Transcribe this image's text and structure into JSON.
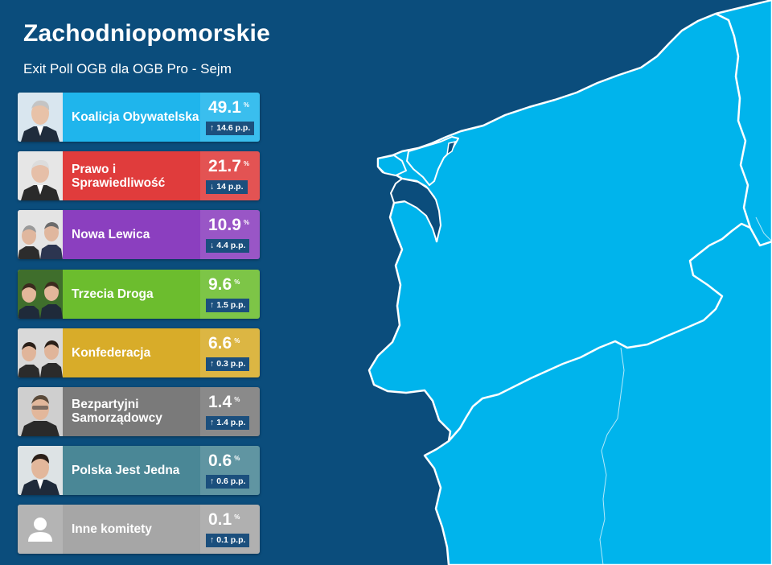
{
  "header": {
    "title": "Zachodniopomorskie",
    "subtitle": "Exit Poll OGB dla OGB Pro - Sejm"
  },
  "colors": {
    "background": "#0b4d7c",
    "map_fill": "#00b4ec",
    "border": "#ffffff"
  },
  "results": [
    {
      "id": "ko",
      "name": "Koalicja Obywatelska",
      "value": "49.1",
      "unit": "%",
      "change": "14.6 p.p.",
      "direction": "up",
      "color": "#1fb5ec"
    },
    {
      "id": "pis",
      "name": "Prawo i Sprawiedliwość",
      "value": "21.7",
      "unit": "%",
      "change": "14 p.p.",
      "direction": "down",
      "color": "#e03c3c"
    },
    {
      "id": "lewica",
      "name": "Nowa Lewica",
      "value": "10.9",
      "unit": "%",
      "change": "4.4 p.p.",
      "direction": "down",
      "color": "#8b3fbf"
    },
    {
      "id": "td",
      "name": "Trzecia Droga",
      "value": "9.6",
      "unit": "%",
      "change": "1.5 p.p.",
      "direction": "up",
      "color": "#6cbd2e"
    },
    {
      "id": "konf",
      "name": "Konfederacja",
      "value": "6.6",
      "unit": "%",
      "change": "0.3 p.p.",
      "direction": "up",
      "color": "#d8ac29"
    },
    {
      "id": "bs",
      "name": "Bezpartyjni Samorządowcy",
      "value": "1.4",
      "unit": "%",
      "change": "1.4 p.p.",
      "direction": "up",
      "color": "#7a7a7a"
    },
    {
      "id": "pjj",
      "name": "Polska Jest Jedna",
      "value": "0.6",
      "unit": "%",
      "change": "0.6 p.p.",
      "direction": "up",
      "color": "#4a8796"
    },
    {
      "id": "inne",
      "name": "Inne komitety",
      "value": "0.1",
      "unit": "%",
      "change": "0.1 p.p.",
      "direction": "up",
      "color": "#a6a6a6"
    }
  ]
}
